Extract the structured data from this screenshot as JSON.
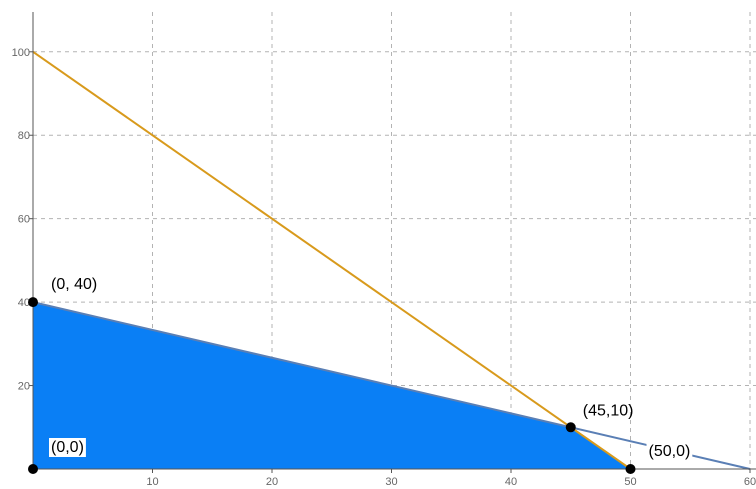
{
  "chart_data": {
    "type": "line",
    "title": "",
    "xlabel": "",
    "ylabel": "",
    "xlim": [
      0,
      60
    ],
    "ylim": [
      0,
      110
    ],
    "grid": true,
    "x_ticks": [
      "10",
      "20",
      "30",
      "40",
      "50",
      "60"
    ],
    "y_ticks": [
      "20",
      "40",
      "60",
      "80",
      "100"
    ],
    "feasible_region": {
      "color": "#0a7ff5",
      "vertices": [
        [
          0,
          0
        ],
        [
          0,
          40
        ],
        [
          45,
          10
        ],
        [
          50,
          0
        ]
      ]
    },
    "series": [
      {
        "color": "#d89a1c",
        "points": [
          [
            0,
            100
          ],
          [
            50,
            0
          ]
        ]
      },
      {
        "color": "#5a7fb5",
        "points": [
          [
            0,
            40
          ],
          [
            60,
            0
          ]
        ]
      }
    ],
    "labeled_points": [
      {
        "x": 0,
        "y": 40,
        "label": "(0, 40)",
        "boxed": false
      },
      {
        "x": 45,
        "y": 10,
        "label": "(45,10)",
        "boxed": false
      },
      {
        "x": 50,
        "y": 0,
        "label": "(50,0)",
        "boxed": true
      },
      {
        "x": 0,
        "y": 0,
        "label": "(0,0)",
        "boxed": true
      }
    ],
    "colors": {
      "grid": "#b3b3b3",
      "axis": "#555555",
      "point": "#000000"
    }
  }
}
